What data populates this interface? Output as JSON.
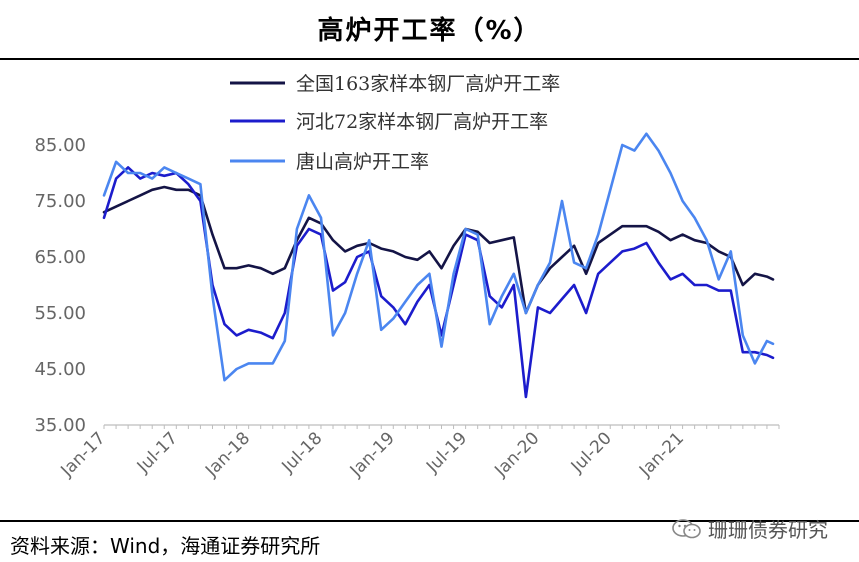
{
  "chart_data": {
    "type": "line",
    "title": "高炉开工率（%）",
    "ylim": [
      35,
      85
    ],
    "y_ticks": [
      "85.00",
      "75.00",
      "65.00",
      "55.00",
      "45.00",
      "35.00"
    ],
    "x_ticks": [
      "Jan-17",
      "Jul-17",
      "Jan-18",
      "Jul-18",
      "Jan-19",
      "Jul-19",
      "Jan-20",
      "Jul-20",
      "Jan-21"
    ],
    "x_range": [
      0,
      56
    ],
    "legend_position": "top-center",
    "grid": false,
    "series": [
      {
        "name": "全国163家样本钢厂高炉开工率",
        "color": "#141446",
        "x": [
          0,
          1,
          2,
          3,
          4,
          5,
          6,
          7,
          8,
          9,
          10,
          11,
          12,
          13,
          14,
          15,
          16,
          17,
          18,
          19,
          20,
          21,
          22,
          23,
          24,
          25,
          26,
          27,
          28,
          29,
          30,
          31,
          32,
          33,
          34,
          35,
          36,
          37,
          38,
          39,
          40,
          41,
          42,
          43,
          44,
          45,
          46,
          47,
          48,
          49,
          50,
          51,
          52,
          53,
          54,
          55,
          55.5
        ],
        "values": [
          73,
          74,
          75,
          76,
          77,
          77.5,
          77,
          77,
          76,
          69,
          63,
          63,
          63.5,
          63,
          62,
          63,
          68,
          72,
          71,
          68,
          66,
          67,
          67.5,
          66.5,
          66,
          65,
          64.5,
          66,
          63,
          67,
          70,
          69.5,
          67.5,
          68,
          68.5,
          55,
          60,
          63,
          65,
          67,
          62,
          67.5,
          69,
          70.5,
          70.5,
          70.5,
          69.5,
          68,
          69,
          68,
          67.5,
          66,
          65,
          60,
          62,
          61.5,
          61
        ]
      },
      {
        "name": "河北72家样本钢厂高炉开工率",
        "color": "#1c1ccc",
        "x": [
          0,
          1,
          2,
          3,
          4,
          5,
          6,
          7,
          8,
          9,
          10,
          11,
          12,
          13,
          14,
          15,
          16,
          17,
          18,
          19,
          20,
          21,
          22,
          23,
          24,
          25,
          26,
          27,
          28,
          29,
          30,
          31,
          32,
          33,
          34,
          35,
          36,
          37,
          38,
          39,
          40,
          41,
          42,
          43,
          44,
          45,
          46,
          47,
          48,
          49,
          50,
          51,
          52,
          53,
          54,
          55,
          55.5
        ],
        "values": [
          72,
          79,
          81,
          79,
          80,
          79.5,
          80,
          78,
          75,
          60,
          53,
          51,
          52,
          51.5,
          50.5,
          55,
          67,
          70,
          69,
          59,
          60.5,
          65,
          66,
          58,
          56,
          53,
          57,
          60,
          51,
          60,
          69,
          68,
          58,
          56,
          60,
          40,
          56,
          55,
          57.5,
          60,
          55,
          62,
          64,
          66,
          66.5,
          67.5,
          64,
          61,
          62,
          60,
          60,
          59,
          59,
          48,
          48,
          47.5,
          47
        ]
      },
      {
        "name": "唐山高炉开工率",
        "color": "#4b86f0",
        "x": [
          0,
          1,
          2,
          3,
          4,
          5,
          6,
          7,
          8,
          9,
          10,
          11,
          12,
          13,
          14,
          15,
          16,
          17,
          18,
          19,
          20,
          21,
          22,
          23,
          24,
          25,
          26,
          27,
          28,
          29,
          30,
          31,
          32,
          33,
          34,
          35,
          36,
          37,
          38,
          39,
          40,
          41,
          42,
          43,
          44,
          45,
          46,
          47,
          48,
          49,
          50,
          51,
          52,
          53,
          54,
          55,
          55.5
        ],
        "values": [
          76,
          82,
          80,
          80,
          79,
          81,
          80,
          79,
          78,
          58,
          43,
          45,
          46,
          46,
          46,
          50,
          70,
          76,
          72,
          51,
          55,
          62,
          68,
          52,
          54,
          57,
          60,
          62,
          49,
          62,
          70,
          69,
          53,
          58,
          62,
          55,
          60,
          64,
          75,
          64,
          63,
          69,
          77,
          85,
          84,
          87,
          84,
          80,
          75,
          72,
          68,
          61,
          66,
          51,
          46,
          50,
          49.5
        ]
      }
    ]
  },
  "source": "资料来源：Wind，海通证券研究所",
  "watermark": "珊珊债券研究"
}
